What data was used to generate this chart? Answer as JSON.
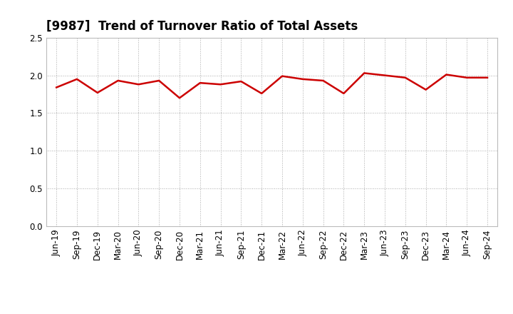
{
  "title": "[9987]  Trend of Turnover Ratio of Total Assets",
  "x_labels": [
    "Jun-19",
    "Sep-19",
    "Dec-19",
    "Mar-20",
    "Jun-20",
    "Sep-20",
    "Dec-20",
    "Mar-21",
    "Jun-21",
    "Sep-21",
    "Dec-21",
    "Mar-22",
    "Jun-22",
    "Sep-22",
    "Dec-22",
    "Mar-23",
    "Jun-23",
    "Sep-23",
    "Dec-23",
    "Mar-24",
    "Jun-24",
    "Sep-24"
  ],
  "y_values": [
    1.84,
    1.95,
    1.77,
    1.93,
    1.88,
    1.93,
    1.7,
    1.9,
    1.88,
    1.92,
    1.76,
    1.99,
    1.95,
    1.93,
    1.76,
    2.03,
    2.0,
    1.97,
    1.81,
    2.01,
    1.97,
    1.97
  ],
  "line_color": "#cc0000",
  "line_width": 1.8,
  "ylim": [
    0.0,
    2.5
  ],
  "yticks": [
    0.0,
    0.5,
    1.0,
    1.5,
    2.0,
    2.5
  ],
  "grid_color": "#aaaaaa",
  "bg_color": "#ffffff",
  "title_fontsize": 12,
  "tick_fontsize": 8.5,
  "spine_color": "#bbbbbb"
}
